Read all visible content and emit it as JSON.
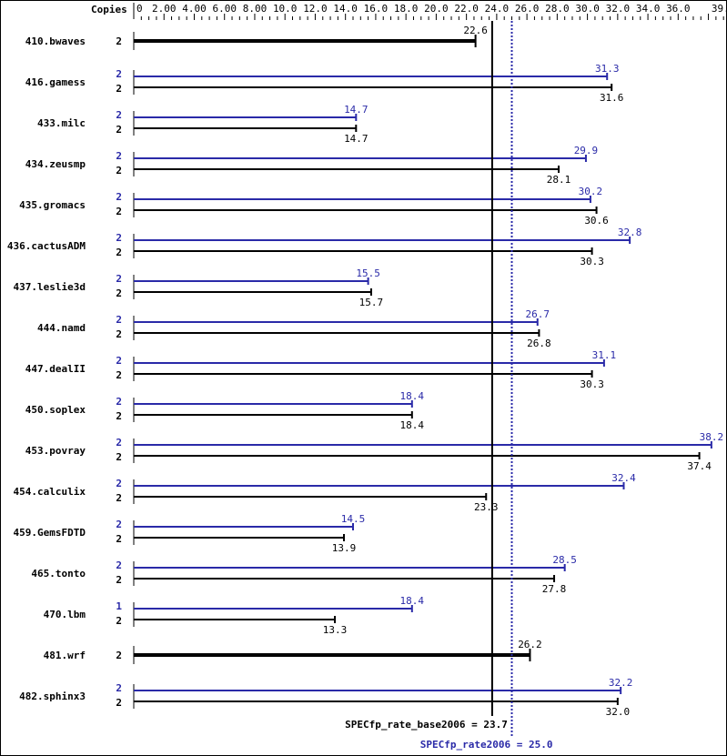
{
  "chart_data": {
    "type": "bar",
    "orientation": "horizontal",
    "copies_header": "Copies",
    "x_range": [
      0,
      39
    ],
    "tick_labels": [
      "0",
      "2.00",
      "4.00",
      "6.00",
      "8.00",
      "10.0",
      "12.0",
      "14.0",
      "16.0",
      "18.0",
      "20.0",
      "22.0",
      "24.0",
      "26.0",
      "28.0",
      "30.0",
      "32.0",
      "34.0",
      "36.0",
      "39.0"
    ],
    "tick_values": [
      0,
      2,
      4,
      6,
      8,
      10,
      12,
      14,
      16,
      18,
      20,
      22,
      24,
      26,
      28,
      30,
      32,
      34,
      36,
      39
    ],
    "colors": {
      "base": "#000000",
      "peak": "#2a2aa8"
    },
    "benchmarks": [
      {
        "name": "410.bwaves",
        "peak_copies": null,
        "peak": null,
        "base_copies": "2",
        "base": 22.6,
        "base_label": "22.6"
      },
      {
        "name": "416.gamess",
        "peak_copies": "2",
        "peak": 31.3,
        "peak_label": "31.3",
        "base_copies": "2",
        "base": 31.6,
        "base_label": "31.6"
      },
      {
        "name": "433.milc",
        "peak_copies": "2",
        "peak": 14.7,
        "peak_label": "14.7",
        "base_copies": "2",
        "base": 14.7,
        "base_label": "14.7"
      },
      {
        "name": "434.zeusmp",
        "peak_copies": "2",
        "peak": 29.9,
        "peak_label": "29.9",
        "base_copies": "2",
        "base": 28.1,
        "base_label": "28.1"
      },
      {
        "name": "435.gromacs",
        "peak_copies": "2",
        "peak": 30.2,
        "peak_label": "30.2",
        "base_copies": "2",
        "base": 30.6,
        "base_label": "30.6"
      },
      {
        "name": "436.cactusADM",
        "peak_copies": "2",
        "peak": 32.8,
        "peak_label": "32.8",
        "base_copies": "2",
        "base": 30.3,
        "base_label": "30.3"
      },
      {
        "name": "437.leslie3d",
        "peak_copies": "2",
        "peak": 15.5,
        "peak_label": "15.5",
        "base_copies": "2",
        "base": 15.7,
        "base_label": "15.7"
      },
      {
        "name": "444.namd",
        "peak_copies": "2",
        "peak": 26.7,
        "peak_label": "26.7",
        "base_copies": "2",
        "base": 26.8,
        "base_label": "26.8"
      },
      {
        "name": "447.dealII",
        "peak_copies": "2",
        "peak": 31.1,
        "peak_label": "31.1",
        "base_copies": "2",
        "base": 30.3,
        "base_label": "30.3"
      },
      {
        "name": "450.soplex",
        "peak_copies": "2",
        "peak": 18.4,
        "peak_label": "18.4",
        "base_copies": "2",
        "base": 18.4,
        "base_label": "18.4"
      },
      {
        "name": "453.povray",
        "peak_copies": "2",
        "peak": 38.2,
        "peak_label": "38.2",
        "base_copies": "2",
        "base": 37.4,
        "base_label": "37.4"
      },
      {
        "name": "454.calculix",
        "peak_copies": "2",
        "peak": 32.4,
        "peak_label": "32.4",
        "base_copies": "2",
        "base": 23.3,
        "base_label": "23.3"
      },
      {
        "name": "459.GemsFDTD",
        "peak_copies": "2",
        "peak": 14.5,
        "peak_label": "14.5",
        "base_copies": "2",
        "base": 13.9,
        "base_label": "13.9"
      },
      {
        "name": "465.tonto",
        "peak_copies": "2",
        "peak": 28.5,
        "peak_label": "28.5",
        "base_copies": "2",
        "base": 27.8,
        "base_label": "27.8"
      },
      {
        "name": "470.lbm",
        "peak_copies": "1",
        "peak": 18.4,
        "peak_label": "18.4",
        "base_copies": "2",
        "base": 13.3,
        "base_label": "13.3"
      },
      {
        "name": "481.wrf",
        "peak_copies": null,
        "peak": null,
        "base_copies": "2",
        "base": 26.2,
        "base_label": "26.2"
      },
      {
        "name": "482.sphinx3",
        "peak_copies": "2",
        "peak": 32.2,
        "peak_label": "32.2",
        "base_copies": "2",
        "base": 32.0,
        "base_label": "32.0"
      }
    ],
    "reference_lines": [
      {
        "label": "SPECfp_rate_base2006 = 23.7",
        "value": 23.7,
        "style": "solid",
        "color": "#000000"
      },
      {
        "label": "SPECfp_rate2006 = 25.0",
        "value": 25.0,
        "style": "dotted",
        "color": "#2a2aa8"
      }
    ]
  }
}
